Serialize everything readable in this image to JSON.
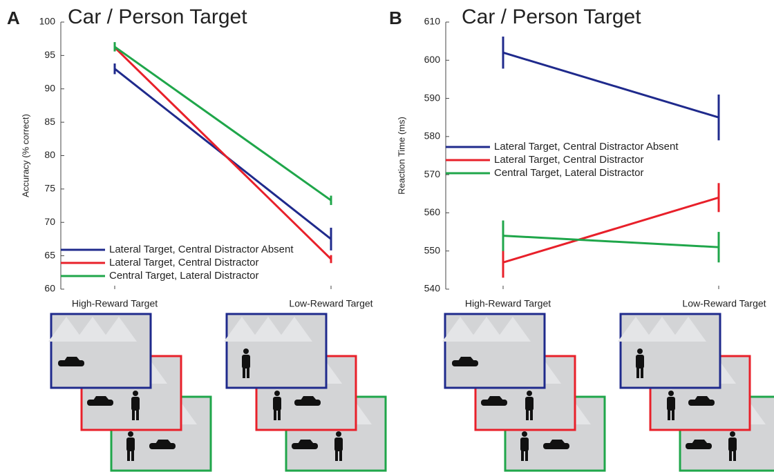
{
  "chart_data": [
    {
      "type": "line",
      "panel": "A",
      "title": "Car / Person Target",
      "ylabel": "Accuracy (% correct)",
      "categories": [
        "High-Reward Target",
        "Low-Reward Target"
      ],
      "ylim": [
        60,
        100
      ],
      "yticks": [
        60,
        65,
        70,
        75,
        80,
        85,
        90,
        95,
        100
      ],
      "legend": "lower left",
      "series": [
        {
          "name": "Lateral Target, Central Distractor Absent",
          "color": "#1f2a8c",
          "values": [
            93,
            67.5
          ],
          "errors": [
            0.8,
            1.7
          ]
        },
        {
          "name": "Lateral Target, Central Distractor",
          "color": "#e8202a",
          "values": [
            96.2,
            64.5
          ],
          "errors": [
            0.5,
            0.6
          ]
        },
        {
          "name": "Central Target, Lateral Distractor",
          "color": "#1fa64a",
          "values": [
            96.3,
            73.3
          ],
          "errors": [
            0.7,
            0.7
          ]
        }
      ]
    },
    {
      "type": "line",
      "panel": "B",
      "title": "Car / Person Target",
      "ylabel": "Reaction Time (ms)",
      "categories": [
        "High-Reward Target",
        "Low-Reward Target"
      ],
      "ylim": [
        540,
        610
      ],
      "yticks": [
        540,
        550,
        560,
        570,
        580,
        590,
        600,
        610
      ],
      "legend": "center left",
      "series": [
        {
          "name": "Lateral Target, Central Distractor Absent",
          "color": "#1f2a8c",
          "values": [
            602,
            585
          ],
          "errors": [
            4.2,
            6
          ]
        },
        {
          "name": "Lateral Target, Central Distractor",
          "color": "#e8202a",
          "values": [
            547,
            564
          ],
          "errors": [
            4,
            3.8
          ]
        },
        {
          "name": "Central Target, Lateral Distractor",
          "color": "#1fa64a",
          "values": [
            554,
            551
          ],
          "errors": [
            4,
            4
          ]
        }
      ]
    }
  ]
}
